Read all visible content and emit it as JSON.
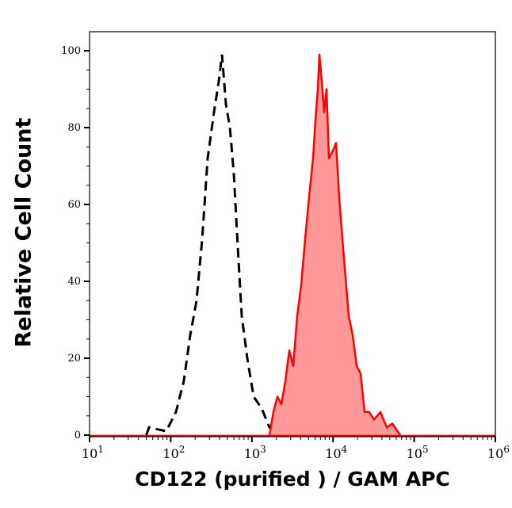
{
  "chart_data": {
    "type": "area",
    "title": "",
    "xlabel": "CD122 (purified ) / GAM APC",
    "ylabel": "Relative Cell Count",
    "xscale": "log",
    "xlim": [
      10,
      1000000
    ],
    "ylim": [
      0,
      105
    ],
    "grid": false,
    "x_tick_labels": [
      {
        "base": "10",
        "exp": "1",
        "value": 10
      },
      {
        "base": "10",
        "exp": "2",
        "value": 100
      },
      {
        "base": "10",
        "exp": "3",
        "value": 1000
      },
      {
        "base": "10",
        "exp": "4",
        "value": 10000
      },
      {
        "base": "10",
        "exp": "5",
        "value": 100000
      },
      {
        "base": "10",
        "exp": "6",
        "value": 1000000
      }
    ],
    "y_ticks": [
      "0",
      "20",
      "40",
      "60",
      "80",
      "100"
    ],
    "series": [
      {
        "style": "dashed-line",
        "color": "#000000",
        "x": [
          50,
          54,
          88,
          116,
          145,
          174,
          208,
          244,
          285,
          341,
          391,
          428,
          479,
          536,
          599,
          670,
          750,
          878,
          1050,
          1315,
          1648,
          2584,
          4050
        ],
        "y": [
          0,
          2,
          1,
          6,
          14,
          26,
          35,
          51,
          72,
          84,
          92,
          99,
          86,
          80,
          68,
          49,
          31,
          20,
          10,
          7,
          2,
          1,
          0
        ]
      },
      {
        "style": "filled",
        "color": "#ff0000",
        "fill": "#ff9999",
        "x": [
          1648,
          1845,
          2063,
          2307,
          2584,
          2890,
          3236,
          3622,
          4050,
          4530,
          5070,
          5675,
          6070,
          6500,
          6790,
          7260,
          7780,
          8320,
          8890,
          9950,
          10900,
          11900,
          13030,
          14260,
          15600,
          17460,
          19540,
          21880,
          24490,
          28000,
          32060,
          38370,
          45920,
          53700,
          67300
        ],
        "y": [
          0,
          6,
          10,
          8,
          14,
          22,
          18,
          31,
          39,
          51,
          62,
          72,
          82,
          90,
          99,
          92,
          84,
          90,
          72,
          74,
          76,
          62,
          51,
          41,
          31,
          26,
          18,
          16,
          6,
          6,
          4,
          6,
          2,
          3,
          0
        ]
      }
    ]
  }
}
